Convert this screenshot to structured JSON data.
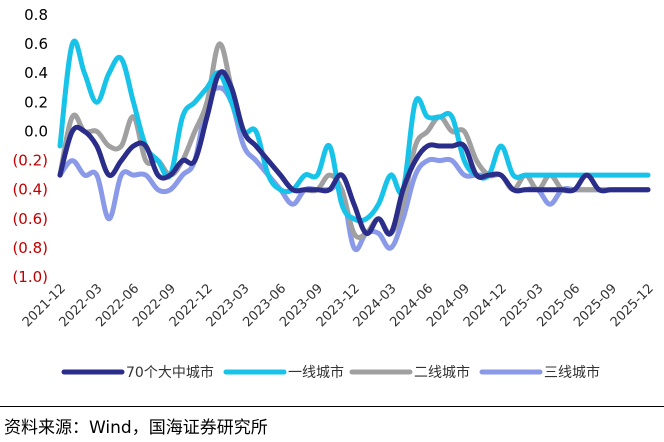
{
  "chart_data": {
    "type": "line",
    "y_ticks": [
      "0.8",
      "0.6",
      "0.4",
      "0.2",
      "0.0",
      "(0.2)",
      "(0.4)",
      "(0.6)",
      "(0.8)",
      "(1.0)"
    ],
    "ylim": [
      -1.0,
      0.8
    ],
    "x_ticks": [
      "2021-12",
      "2022-03",
      "2022-06",
      "2022-09",
      "2022-12",
      "2023-03",
      "2023-06",
      "2023-09",
      "2023-12",
      "2024-03",
      "2024-06",
      "2024-09",
      "2024-12",
      "2025-03",
      "2025-06",
      "2025-09",
      "2025-12"
    ],
    "grid": false,
    "legend_position": "bottom",
    "series": [
      {
        "name": "70个大中城市",
        "color": "#2b2d8a",
        "values": [
          -0.3,
          0.0,
          0.0,
          -0.1,
          -0.3,
          -0.2,
          -0.1,
          -0.1,
          -0.3,
          -0.3,
          -0.2,
          -0.2,
          0.1,
          0.4,
          0.3,
          0.0,
          -0.1,
          -0.2,
          -0.3,
          -0.4,
          -0.4,
          -0.4,
          -0.4,
          -0.3,
          -0.5,
          -0.7,
          -0.6,
          -0.7,
          -0.4,
          -0.2,
          -0.1,
          -0.1,
          -0.1,
          -0.1,
          -0.3,
          -0.3,
          -0.3,
          -0.4,
          -0.4,
          -0.4,
          -0.4,
          -0.4,
          -0.4,
          -0.3,
          -0.4,
          -0.4,
          -0.4,
          -0.4,
          -0.4
        ]
      },
      {
        "name": "一线城市",
        "color": "#17c3e8",
        "values": [
          -0.1,
          0.6,
          0.4,
          0.2,
          0.4,
          0.5,
          0.2,
          -0.1,
          -0.2,
          -0.3,
          0.1,
          0.2,
          0.3,
          0.4,
          0.2,
          0.0,
          0.0,
          -0.3,
          -0.4,
          -0.4,
          -0.3,
          -0.3,
          -0.1,
          -0.5,
          -0.6,
          -0.6,
          -0.5,
          -0.3,
          -0.4,
          0.2,
          0.1,
          0.1,
          0.1,
          -0.2,
          -0.3,
          -0.3,
          -0.1,
          -0.3,
          -0.3,
          -0.3,
          -0.3,
          -0.3,
          -0.3,
          -0.3,
          -0.3,
          -0.3,
          -0.3,
          -0.3,
          -0.3
        ]
      },
      {
        "name": "二线城市",
        "color": "#a0a0a0",
        "values": [
          -0.3,
          0.1,
          0.0,
          0.0,
          -0.1,
          -0.1,
          0.1,
          -0.2,
          -0.2,
          -0.3,
          -0.2,
          0.0,
          0.2,
          0.6,
          0.3,
          0.0,
          -0.1,
          -0.2,
          -0.3,
          -0.4,
          -0.4,
          -0.4,
          -0.3,
          -0.4,
          -0.7,
          -0.7,
          -0.6,
          -0.7,
          -0.5,
          -0.1,
          0.0,
          0.1,
          0.0,
          0.0,
          -0.2,
          -0.3,
          -0.3,
          -0.4,
          -0.3,
          -0.4,
          -0.3,
          -0.4,
          -0.4,
          -0.4,
          -0.4,
          -0.4,
          -0.4,
          -0.4,
          -0.4
        ]
      },
      {
        "name": "三线城市",
        "color": "#8a9ae8",
        "values": [
          -0.3,
          -0.2,
          -0.3,
          -0.3,
          -0.6,
          -0.3,
          -0.3,
          -0.3,
          -0.4,
          -0.4,
          -0.3,
          -0.2,
          0.2,
          0.3,
          0.2,
          -0.1,
          -0.2,
          -0.3,
          -0.4,
          -0.5,
          -0.4,
          -0.4,
          -0.4,
          -0.4,
          -0.8,
          -0.7,
          -0.7,
          -0.8,
          -0.6,
          -0.3,
          -0.2,
          -0.2,
          -0.2,
          -0.3,
          -0.3,
          -0.3,
          -0.3,
          -0.4,
          -0.4,
          -0.4,
          -0.5,
          -0.4,
          -0.4,
          -0.4,
          -0.4,
          -0.4,
          -0.4,
          -0.4,
          -0.4
        ]
      }
    ]
  },
  "colors": {
    "positive_tick": "#000000",
    "negative_tick": "#c00000"
  },
  "source_text": "资料来源：Wind，国海证券研究所"
}
